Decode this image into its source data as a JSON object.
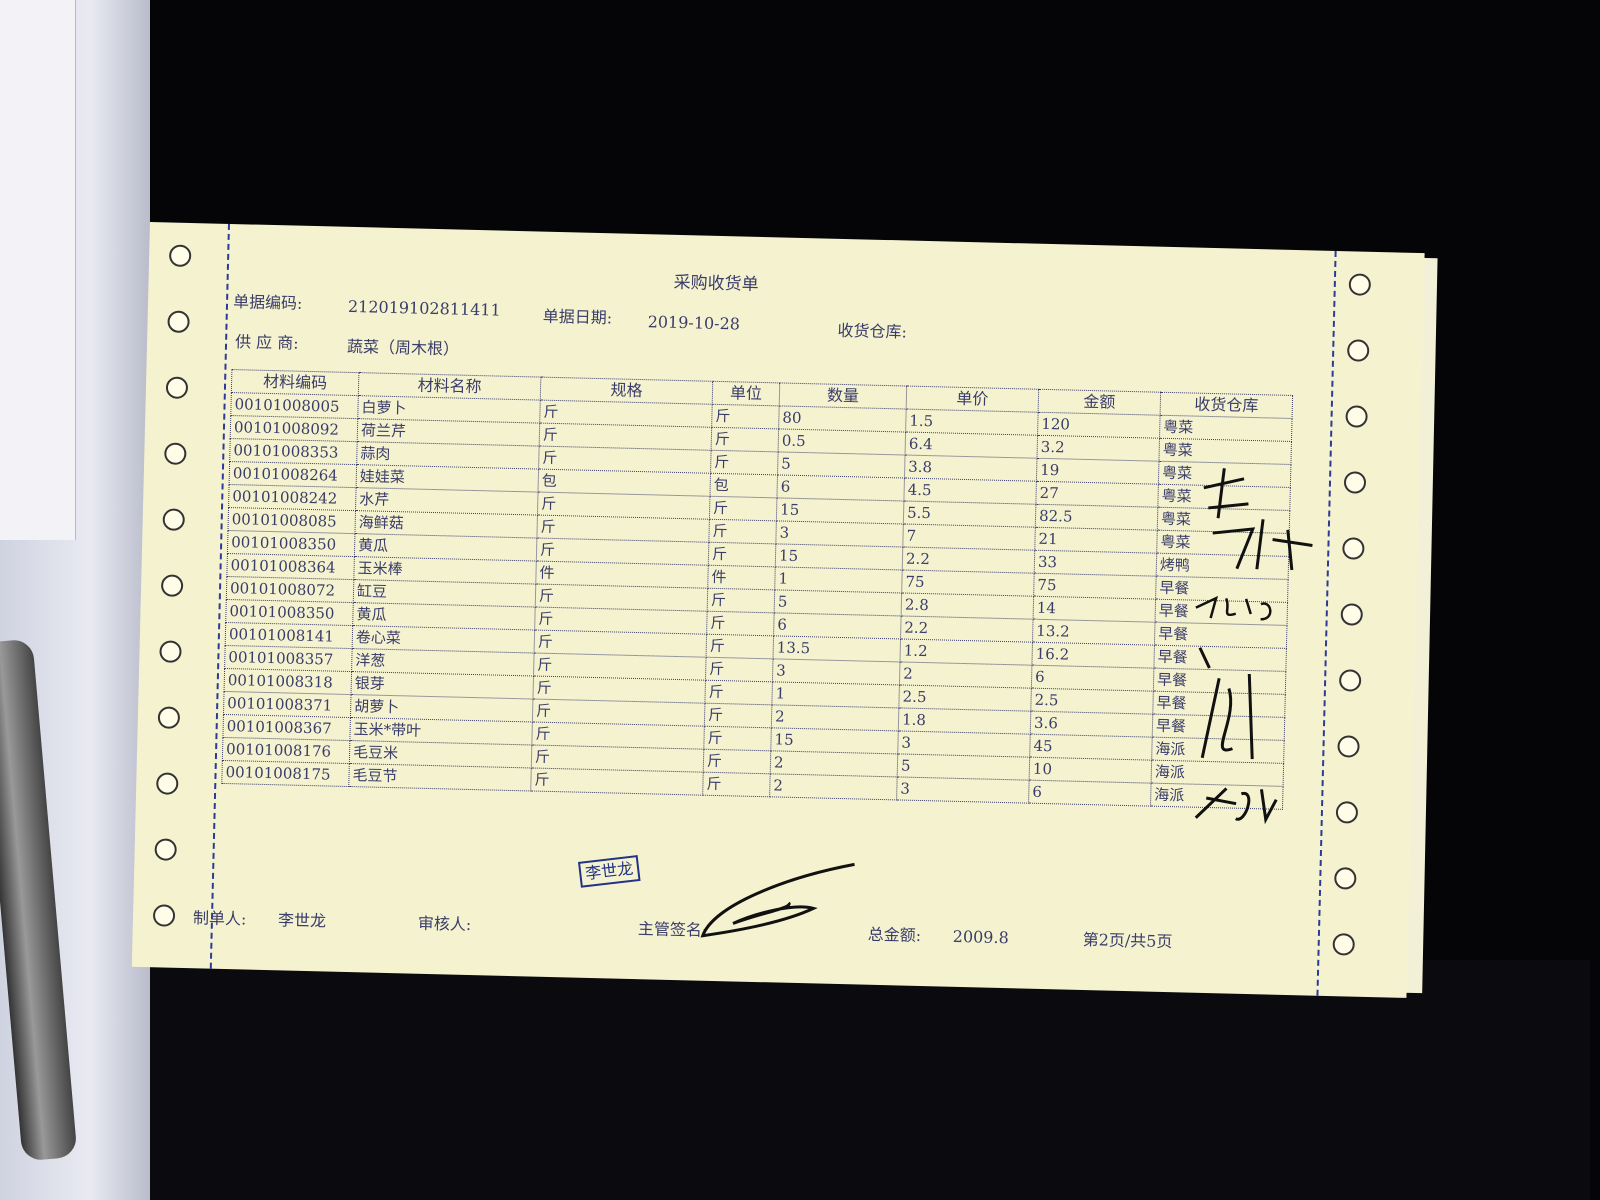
{
  "document": {
    "title": "采购收货单",
    "doc_no_label": "单据编码:",
    "doc_no": "212019102811411",
    "date_label": "单据日期:",
    "date": "2019-10-28",
    "warehouse_label": "收货仓库:",
    "supplier_label": "供 应 商:",
    "supplier": "蔬菜（周木根）"
  },
  "table": {
    "headers": [
      "材料编码",
      "材料名称",
      "规格",
      "单位",
      "数量",
      "单价",
      "金额",
      "收货仓库"
    ],
    "rows": [
      [
        "00101008005",
        "白萝卜",
        "斤",
        "斤",
        "80",
        "1.5",
        "120",
        "粤菜"
      ],
      [
        "00101008092",
        "荷兰芹",
        "斤",
        "斤",
        "0.5",
        "6.4",
        "3.2",
        "粤菜"
      ],
      [
        "00101008353",
        "蒜肉",
        "斤",
        "斤",
        "5",
        "3.8",
        "19",
        "粤菜"
      ],
      [
        "00101008264",
        "娃娃菜",
        "包",
        "包",
        "6",
        "4.5",
        "27",
        "粤菜"
      ],
      [
        "00101008242",
        "水芹",
        "斤",
        "斤",
        "15",
        "5.5",
        "82.5",
        "粤菜"
      ],
      [
        "00101008085",
        "海鲜菇",
        "斤",
        "斤",
        "3",
        "7",
        "21",
        "粤菜"
      ],
      [
        "00101008350",
        "黄瓜",
        "斤",
        "斤",
        "15",
        "2.2",
        "33",
        "烤鸭"
      ],
      [
        "00101008364",
        "玉米棒",
        "件",
        "件",
        "1",
        "75",
        "75",
        "早餐"
      ],
      [
        "00101008072",
        "缸豆",
        "斤",
        "斤",
        "5",
        "2.8",
        "14",
        "早餐"
      ],
      [
        "00101008350",
        "黄瓜",
        "斤",
        "斤",
        "6",
        "2.2",
        "13.2",
        "早餐"
      ],
      [
        "00101008141",
        "卷心菜",
        "斤",
        "斤",
        "13.5",
        "1.2",
        "16.2",
        "早餐"
      ],
      [
        "00101008357",
        "洋葱",
        "斤",
        "斤",
        "3",
        "2",
        "6",
        "早餐"
      ],
      [
        "00101008318",
        "银芽",
        "斤",
        "斤",
        "1",
        "2.5",
        "2.5",
        "早餐"
      ],
      [
        "00101008371",
        "胡萝卜",
        "斤",
        "斤",
        "2",
        "1.8",
        "3.6",
        "早餐"
      ],
      [
        "00101008367",
        "玉米*带叶",
        "斤",
        "斤",
        "15",
        "3",
        "45",
        "海派"
      ],
      [
        "00101008176",
        "毛豆米",
        "斤",
        "斤",
        "2",
        "5",
        "10",
        "海派"
      ],
      [
        "00101008175",
        "毛豆节",
        "斤",
        "斤",
        "2",
        "3",
        "6",
        "海派"
      ]
    ]
  },
  "stamp": "李世龙",
  "footer": {
    "maker_label": "制单人:",
    "maker": "李世龙",
    "reviewer_label": "审核人:",
    "supervisor_label": "主管签名:",
    "total_label": "总金额:",
    "total": "2009.8",
    "page": "第2页/共5页"
  },
  "colors": {
    "paper": "#f5f3cf",
    "ink": "#3a3c6a",
    "background": "#050507"
  }
}
